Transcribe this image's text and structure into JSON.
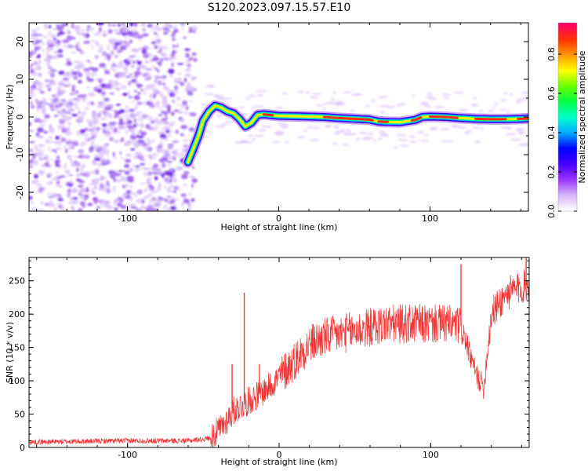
{
  "title": "S120.2023.097.15.57.E10",
  "chart_data": [
    {
      "type": "heatmap",
      "title": "S120.2023.097.15.57.E10",
      "xlabel": "Height of straight line (km)",
      "ylabel": "Frequency (Hz)",
      "xlim": [
        -165,
        165
      ],
      "ylim": [
        -25,
        25
      ],
      "xticks": [
        "-100",
        "0",
        "100"
      ],
      "yticks": [
        "-20",
        "-10",
        "0",
        "10",
        "20"
      ],
      "ridge": {
        "x": [
          -60,
          -57,
          -53,
          -50,
          -46,
          -42,
          -38,
          -34,
          -30,
          -26,
          -22,
          -18,
          -14,
          -10,
          -5,
          0,
          10,
          20,
          30,
          40,
          50,
          60,
          66,
          70,
          80,
          90,
          95,
          100,
          110,
          120,
          130,
          140,
          150,
          160,
          165
        ],
        "y": [
          -12,
          -9,
          -5,
          -1,
          1.5,
          3,
          2.5,
          1.5,
          1,
          -0.5,
          -2.5,
          -1.5,
          0.5,
          0.7,
          0.5,
          0.3,
          0.2,
          0.1,
          0.0,
          -0.3,
          -0.5,
          -0.7,
          -1.2,
          -1.3,
          -1.4,
          -0.8,
          0.0,
          0.1,
          0.0,
          -0.3,
          -0.5,
          -0.6,
          -0.6,
          -0.5,
          -0.4
        ]
      },
      "noise_region_x": [
        -165,
        -55
      ],
      "colorbar": {
        "label": "Normalized spectral amplitude",
        "ticks": [
          "0.0",
          "0.2",
          "0.4",
          "0.6",
          "0.8"
        ],
        "range": [
          0,
          0.96
        ],
        "colors": [
          "#ffffff",
          "#d8b4f8",
          "#9933ff",
          "#4400ff",
          "#0000ff",
          "#00aaff",
          "#00ffcc",
          "#00ff44",
          "#66ff00",
          "#ffff00",
          "#ff9900",
          "#ff3300",
          "#ff0066"
        ]
      }
    },
    {
      "type": "line",
      "xlabel": "Height of straight line (km)",
      "ylabel": "SNR (10 * v/v)",
      "xlim": [
        -165,
        165
      ],
      "ylim": [
        0,
        285
      ],
      "xticks": [
        "-100",
        "0",
        "100"
      ],
      "yticks": [
        "0",
        "50",
        "100",
        "150",
        "200",
        "250"
      ],
      "color": "#ee3333",
      "trend": {
        "x": [
          -165,
          -100,
          -60,
          -45,
          -38,
          -30,
          -20,
          -10,
          0,
          10,
          20,
          30,
          50,
          70,
          90,
          110,
          120,
          125,
          130,
          135,
          140,
          150,
          165
        ],
        "y": [
          8,
          10,
          10,
          14,
          30,
          55,
          70,
          85,
          105,
          130,
          155,
          165,
          175,
          185,
          185,
          185,
          182,
          145,
          110,
          90,
          200,
          230,
          245
        ]
      },
      "spikes": [
        {
          "x": -23,
          "y": 232
        },
        {
          "x": -31,
          "y": 125
        },
        {
          "x": -13,
          "y": 125
        },
        {
          "x": 120,
          "y": 275
        },
        {
          "x": 163,
          "y": 285
        }
      ]
    }
  ]
}
